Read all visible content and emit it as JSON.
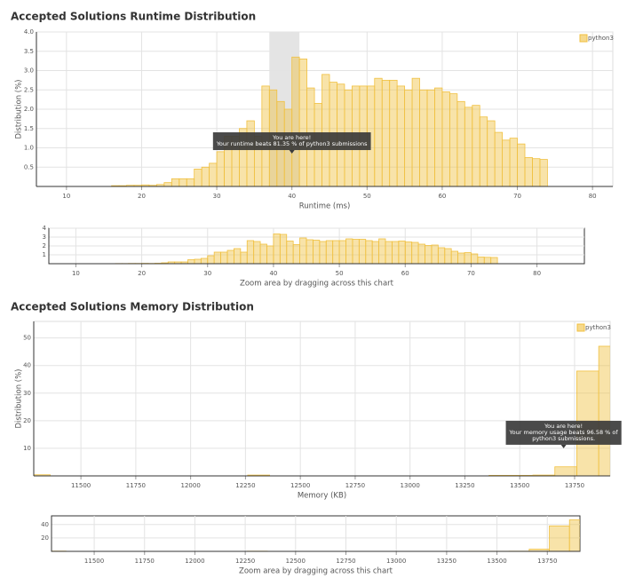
{
  "chart_data": [
    {
      "type": "histogram",
      "title": "Accepted Solutions Runtime Distribution",
      "xlabel": "Runtime (ms)",
      "ylabel": "Distribution (%)",
      "bins": [
        16,
        17,
        18,
        19,
        20,
        21,
        22,
        23,
        24,
        25,
        26,
        27,
        28,
        29,
        30,
        31,
        32,
        33,
        34,
        35,
        36,
        37,
        38,
        39,
        40,
        41,
        42,
        43,
        44,
        45,
        46,
        47,
        48,
        49,
        50,
        51,
        52,
        53,
        54,
        55,
        56,
        57,
        58,
        59,
        60,
        61,
        62,
        63,
        64,
        65,
        66,
        67,
        68,
        69,
        70,
        71,
        72,
        73,
        74
      ],
      "series": [
        {
          "name": "python3",
          "color": "#f0c040",
          "values": [
            0.02,
            0.02,
            0.03,
            0.03,
            0.04,
            0.03,
            0.05,
            0.1,
            0.2,
            0.2,
            0.2,
            0.45,
            0.5,
            0.6,
            0.9,
            1.3,
            1.3,
            1.5,
            1.7,
            1.3,
            2.6,
            2.5,
            2.2,
            2.0,
            3.35,
            3.3,
            2.55,
            2.15,
            2.9,
            2.7,
            2.65,
            2.5,
            2.6,
            2.6,
            2.6,
            2.8,
            2.75,
            2.75,
            2.6,
            2.5,
            2.8,
            2.5,
            2.5,
            2.55,
            2.45,
            2.4,
            2.2,
            2.05,
            2.1,
            1.8,
            1.7,
            1.4,
            1.2,
            1.25,
            1.1,
            0.75,
            0.72,
            0.7
          ]
        }
      ],
      "xlim": [
        6,
        82.7
      ],
      "ylim": [
        0,
        4
      ],
      "xticks": [
        10,
        20,
        30,
        40,
        50,
        60,
        70,
        80
      ],
      "yticks": [
        0.5,
        {
          "value": 1,
          "label": "1.0"
        },
        1.5,
        {
          "value": 2,
          "label": "2.0"
        },
        2.5,
        {
          "value": 3,
          "label": "3.0"
        },
        3.5,
        {
          "value": 4,
          "label": "4.0"
        }
      ],
      "grid": true,
      "legend": "top-right",
      "highlight": [
        37,
        41
      ],
      "annotation": {
        "x": 40,
        "y": 0.85,
        "text": [
          "You are here!",
          "Your runtime beats 81.35 % of python3 submissions"
        ]
      },
      "navigator": {
        "xlim": [
          5.9,
          87.2
        ],
        "ylim": [
          0,
          4
        ],
        "xticks": [
          10,
          20,
          30,
          40,
          50,
          60,
          70,
          80
        ],
        "yticks": [
          1,
          2,
          3,
          4
        ],
        "caption": "Zoom area by dragging across this chart"
      }
    },
    {
      "type": "histogram",
      "title": "Accepted Solutions Memory Distribution",
      "xlabel": "Memory (KB)",
      "ylabel": "Distribution (%)",
      "bins": [
        11260,
        11360,
        11460,
        11560,
        11660,
        11760,
        11860,
        11960,
        12060,
        12160,
        12260,
        12360,
        12460,
        12560,
        12660,
        12760,
        12860,
        12960,
        13060,
        13160,
        13260,
        13360,
        13460,
        13560,
        13660,
        13760,
        13860,
        13960
      ],
      "series": [
        {
          "name": "python3",
          "color": "#f0c040",
          "values": [
            0.4,
            0,
            0,
            0,
            0,
            0,
            0,
            0,
            0,
            0,
            0.3,
            0,
            0,
            0,
            0,
            0,
            0,
            0,
            0,
            0,
            0,
            0.2,
            0.2,
            0.3,
            3.3,
            38,
            47
          ]
        }
      ],
      "xlim": [
        11285,
        13912
      ],
      "ylim": [
        0,
        56
      ],
      "xticks": [
        11500,
        11750,
        12000,
        12250,
        12500,
        12750,
        13000,
        13250,
        13500,
        13750
      ],
      "yticks": [
        10,
        20,
        30,
        40,
        50
      ],
      "grid": true,
      "legend": "top-right",
      "annotation": {
        "x": 13700,
        "y": 10,
        "text": [
          "You are here!",
          "Your memory usage beats 96.58 % of",
          "python3 submissions."
        ]
      },
      "navigator": {
        "xlim": [
          11288,
          13912
        ],
        "ylim": [
          0,
          53
        ],
        "xticks": [
          11500,
          11750,
          12000,
          12250,
          12500,
          12750,
          13000,
          13250,
          13500,
          13750
        ],
        "yticks": [
          20,
          40
        ],
        "caption": "Zoom area by dragging across this chart"
      }
    }
  ]
}
